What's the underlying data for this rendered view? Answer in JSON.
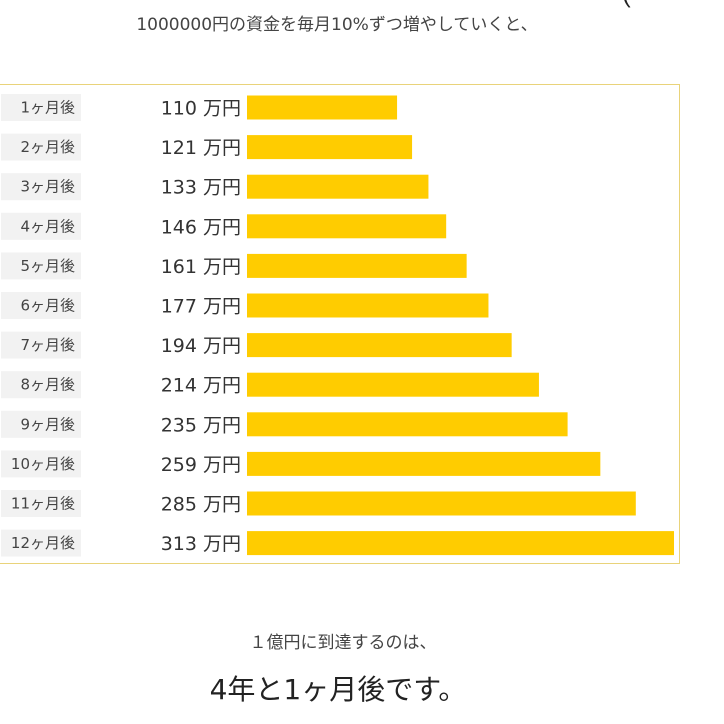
{
  "intro": "1000000円の資金を毎月10%ずつ増やしていくと、",
  "corner_mark": "(",
  "conclusion": {
    "lead": "１億円に到達するのは、",
    "main": "4年と1ヶ月後です。"
  },
  "colors": {
    "bar": "#ffcc00",
    "label_bg": "#f2f2f2",
    "frame": "#e9d37a"
  },
  "chart_data": {
    "type": "bar",
    "orientation": "horizontal",
    "categories": [
      "1ヶ月後",
      "2ヶ月後",
      "3ヶ月後",
      "4ヶ月後",
      "5ヶ月後",
      "6ヶ月後",
      "7ヶ月後",
      "8ヶ月後",
      "9ヶ月後",
      "10ヶ月後",
      "11ヶ月後",
      "12ヶ月後"
    ],
    "values": [
      110,
      121,
      133,
      146,
      161,
      177,
      194,
      214,
      235,
      259,
      285,
      313
    ],
    "value_unit": "万円",
    "xlim": [
      0,
      313
    ],
    "grid": false,
    "legend": "none"
  }
}
